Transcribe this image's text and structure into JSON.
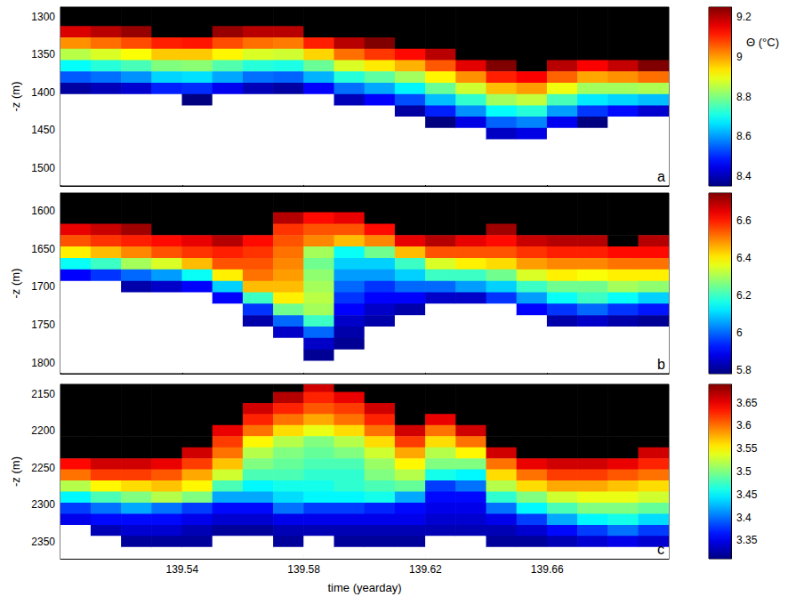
{
  "chart_data": [
    {
      "type": "heatmap",
      "annotations": [
        "a"
      ],
      "y_label": "-z (m)",
      "tick_labels": "y",
      "xlim": [
        139.5,
        139.7
      ],
      "xticks": [
        139.54,
        139.58,
        139.62,
        139.66
      ],
      "ylim": [
        1287,
        1524
      ],
      "yticks": [
        1300,
        1350,
        1400,
        1450,
        1500
      ],
      "colorbar": {
        "label": "Θ (°C)",
        "range": [
          8.35,
          9.25
        ],
        "ticks": [
          8.4,
          8.6,
          8.8,
          9,
          9.2
        ]
      },
      "x": [
        139.505,
        139.515,
        139.525,
        139.535,
        139.545,
        139.555,
        139.565,
        139.575,
        139.585,
        139.595,
        139.605,
        139.615,
        139.625,
        139.635,
        139.645,
        139.655,
        139.665,
        139.675,
        139.685,
        139.695
      ],
      "y": [
        1290,
        1305,
        1320,
        1335,
        1350,
        1365,
        1380,
        1395,
        1410,
        1425,
        1440,
        1455,
        1470,
        1485,
        1500,
        1515
      ],
      "z": [
        [
          9.4,
          9.4,
          9.17,
          9.01,
          8.85,
          8.69,
          8.54,
          8.38,
          8.2,
          8.2,
          8.2,
          8.2,
          8.2,
          8.2,
          8.2,
          8.2
        ],
        [
          9.4,
          9.4,
          9.2,
          9.04,
          8.88,
          8.72,
          8.56,
          8.4,
          8.2,
          8.2,
          8.2,
          8.2,
          8.2,
          8.2,
          8.2,
          8.2
        ],
        [
          9.4,
          9.4,
          9.23,
          9.07,
          8.91,
          8.75,
          8.59,
          8.42,
          8.2,
          8.2,
          8.2,
          8.2,
          8.2,
          8.2,
          8.2,
          8.2
        ],
        [
          9.4,
          9.4,
          9.4,
          9.11,
          8.96,
          8.8,
          8.65,
          8.49,
          8.2,
          8.2,
          8.2,
          8.2,
          8.2,
          8.2,
          8.2,
          8.2
        ],
        [
          9.4,
          9.4,
          9.4,
          9.12,
          8.96,
          8.81,
          8.66,
          8.5,
          8.35,
          8.2,
          8.2,
          8.2,
          8.2,
          8.2,
          8.2,
          8.2
        ],
        [
          9.4,
          9.4,
          9.23,
          9.07,
          8.92,
          8.76,
          8.61,
          8.45,
          8.2,
          8.2,
          8.2,
          8.2,
          8.2,
          8.2,
          8.2,
          8.2
        ],
        [
          9.4,
          9.4,
          9.2,
          9.04,
          8.88,
          8.72,
          8.56,
          8.4,
          8.2,
          8.2,
          8.2,
          8.2,
          8.2,
          8.2,
          8.2,
          8.2
        ],
        [
          9.4,
          9.4,
          9.2,
          9.03,
          8.87,
          8.71,
          8.55,
          8.38,
          8.2,
          8.2,
          8.2,
          8.2,
          8.2,
          8.2,
          8.2,
          8.2
        ],
        [
          9.4,
          9.4,
          9.4,
          9.11,
          8.95,
          8.78,
          8.62,
          8.46,
          8.2,
          8.2,
          8.2,
          8.2,
          8.2,
          8.2,
          8.2,
          8.2
        ],
        [
          9.4,
          9.4,
          9.4,
          9.2,
          9.04,
          8.88,
          8.72,
          8.56,
          8.4,
          8.2,
          8.2,
          8.2,
          8.2,
          8.2,
          8.2,
          8.2
        ],
        [
          9.4,
          9.4,
          9.4,
          9.25,
          9.09,
          8.93,
          8.77,
          8.61,
          8.46,
          8.2,
          8.2,
          8.2,
          8.2,
          8.2,
          8.2,
          8.2
        ],
        [
          9.4,
          9.4,
          9.4,
          9.4,
          9.13,
          8.98,
          8.83,
          8.68,
          8.53,
          8.38,
          8.2,
          8.2,
          8.2,
          8.2,
          8.2,
          8.2
        ],
        [
          9.4,
          9.4,
          9.4,
          9.4,
          9.2,
          9.06,
          8.92,
          8.78,
          8.63,
          8.49,
          8.35,
          8.2,
          8.2,
          8.2,
          8.2,
          8.2
        ],
        [
          9.4,
          9.4,
          9.4,
          9.4,
          9.4,
          9.16,
          9.01,
          8.87,
          8.73,
          8.59,
          8.44,
          8.2,
          8.2,
          8.2,
          8.2,
          8.2
        ],
        [
          9.4,
          9.4,
          9.4,
          9.4,
          9.4,
          9.25,
          9.11,
          8.97,
          8.83,
          8.69,
          8.55,
          8.41,
          8.2,
          8.2,
          8.2,
          8.2
        ],
        [
          9.4,
          9.4,
          9.4,
          9.4,
          9.4,
          9.4,
          9.14,
          9.0,
          8.86,
          8.72,
          8.58,
          8.44,
          8.2,
          8.2,
          8.2,
          8.2
        ],
        [
          9.4,
          9.4,
          9.4,
          9.4,
          9.4,
          9.2,
          9.05,
          8.9,
          8.75,
          8.6,
          8.45,
          8.2,
          8.2,
          8.2,
          8.2,
          8.2
        ],
        [
          9.4,
          9.4,
          9.4,
          9.4,
          9.4,
          9.14,
          8.99,
          8.83,
          8.67,
          8.51,
          8.35,
          8.2,
          8.2,
          8.2,
          8.2,
          8.2
        ],
        [
          9.4,
          9.4,
          9.4,
          9.4,
          9.4,
          9.19,
          9.01,
          8.83,
          8.65,
          8.47,
          8.2,
          8.2,
          8.2,
          8.2,
          8.2,
          8.2
        ],
        [
          9.4,
          9.4,
          9.4,
          9.4,
          9.4,
          9.25,
          9.04,
          8.84,
          8.63,
          8.42,
          8.2,
          8.2,
          8.2,
          8.2,
          8.2,
          8.2
        ]
      ]
    },
    {
      "type": "heatmap",
      "annotations": [
        "b"
      ],
      "y_label": "-z (m)",
      "tick_labels": "y",
      "xlim": [
        139.5,
        139.7
      ],
      "xticks": [
        139.54,
        139.58,
        139.62,
        139.66
      ],
      "ylim": [
        1577,
        1814
      ],
      "yticks": [
        1600,
        1650,
        1700,
        1750,
        1800
      ],
      "colorbar": {
        "range": [
          5.78,
          6.75
        ],
        "ticks": [
          5.8,
          6,
          6.2,
          6.4,
          6.6
        ]
      },
      "x": [
        139.505,
        139.515,
        139.525,
        139.535,
        139.545,
        139.555,
        139.565,
        139.575,
        139.585,
        139.595,
        139.605,
        139.615,
        139.625,
        139.635,
        139.645,
        139.655,
        139.665,
        139.675,
        139.685,
        139.695
      ],
      "y": [
        1580,
        1595,
        1610,
        1625,
        1640,
        1655,
        1670,
        1685,
        1700,
        1715,
        1730,
        1745,
        1760,
        1775,
        1790,
        1805
      ],
      "z": [
        [
          6.9,
          6.9,
          6.9,
          6.65,
          6.55,
          6.4,
          6.15,
          5.9,
          5.6,
          5.6,
          5.6,
          5.6,
          5.6,
          5.6,
          5.6,
          5.6
        ],
        [
          6.9,
          6.9,
          6.9,
          6.68,
          6.58,
          6.45,
          6.2,
          5.95,
          5.6,
          5.6,
          5.6,
          5.6,
          5.6,
          5.6,
          5.6,
          5.6
        ],
        [
          6.9,
          6.9,
          6.9,
          6.72,
          6.6,
          6.5,
          6.3,
          6.0,
          5.82,
          5.6,
          5.6,
          5.6,
          5.6,
          5.6,
          5.6,
          5.6
        ],
        [
          6.9,
          6.9,
          6.9,
          6.9,
          6.62,
          6.55,
          6.35,
          6.05,
          5.85,
          5.6,
          5.6,
          5.6,
          5.6,
          5.6,
          5.6,
          5.6
        ],
        [
          6.9,
          6.9,
          6.9,
          6.9,
          6.65,
          6.58,
          6.45,
          6.15,
          5.9,
          5.6,
          5.6,
          5.6,
          5.6,
          5.6,
          5.6,
          5.6
        ],
        [
          6.9,
          6.9,
          6.9,
          6.9,
          6.7,
          6.6,
          6.55,
          6.4,
          6.1,
          5.9,
          5.6,
          5.6,
          5.6,
          5.6,
          5.6,
          5.6
        ],
        [
          6.9,
          6.9,
          6.9,
          6.9,
          6.62,
          6.58,
          6.55,
          6.52,
          6.45,
          6.2,
          5.95,
          5.82,
          5.6,
          5.6,
          5.6,
          5.6
        ],
        [
          6.9,
          6.9,
          6.7,
          6.58,
          6.55,
          6.52,
          6.5,
          6.48,
          6.45,
          6.4,
          6.25,
          6.0,
          5.85,
          5.6,
          5.6,
          5.6
        ],
        [
          6.9,
          6.9,
          6.62,
          6.55,
          6.5,
          6.3,
          6.25,
          6.28,
          6.3,
          6.32,
          6.3,
          6.2,
          6.0,
          5.85,
          5.8,
          5.6
        ],
        [
          6.9,
          6.9,
          6.65,
          6.55,
          6.45,
          6.15,
          6.1,
          6.05,
          6.0,
          5.95,
          5.9,
          5.85,
          5.82,
          5.8,
          5.6,
          5.6
        ],
        [
          6.9,
          6.9,
          6.9,
          6.62,
          6.5,
          6.25,
          6.1,
          6.05,
          5.95,
          5.9,
          5.85,
          5.82,
          5.6,
          5.6,
          5.6,
          5.6
        ],
        [
          6.9,
          6.9,
          6.9,
          6.9,
          6.65,
          6.45,
          6.2,
          6.1,
          6.0,
          5.9,
          5.82,
          5.6,
          5.6,
          5.6,
          5.6,
          5.6
        ],
        [
          6.9,
          6.9,
          6.9,
          6.9,
          6.7,
          6.55,
          6.35,
          6.2,
          6.0,
          5.85,
          5.6,
          5.6,
          5.6,
          5.6,
          5.6,
          5.6
        ],
        [
          6.9,
          6.9,
          6.9,
          6.9,
          6.65,
          6.55,
          6.4,
          6.2,
          6.05,
          5.85,
          5.6,
          5.6,
          5.6,
          5.6,
          5.6,
          5.6
        ],
        [
          6.9,
          6.9,
          6.9,
          6.72,
          6.62,
          6.55,
          6.42,
          6.25,
          6.1,
          5.95,
          5.6,
          5.6,
          5.6,
          5.6,
          5.6,
          5.6
        ],
        [
          6.9,
          6.9,
          6.9,
          6.9,
          6.68,
          6.58,
          6.48,
          6.35,
          6.2,
          6.05,
          5.9,
          5.6,
          5.6,
          5.6,
          5.6,
          5.6
        ],
        [
          6.9,
          6.9,
          6.9,
          6.9,
          6.7,
          6.6,
          6.5,
          6.4,
          6.25,
          6.15,
          5.95,
          5.82,
          5.6,
          5.6,
          5.6,
          5.6
        ],
        [
          6.9,
          6.9,
          6.9,
          6.9,
          6.7,
          6.6,
          6.5,
          6.38,
          6.25,
          6.2,
          6.0,
          5.85,
          5.6,
          5.6,
          5.6,
          5.6
        ],
        [
          6.9,
          6.9,
          6.9,
          6.9,
          6.9,
          6.62,
          6.52,
          6.4,
          6.3,
          6.15,
          5.95,
          5.82,
          5.6,
          5.6,
          5.6,
          5.6
        ],
        [
          6.9,
          6.9,
          6.9,
          6.9,
          6.7,
          6.62,
          6.52,
          6.4,
          6.28,
          6.1,
          5.92,
          5.8,
          5.6,
          5.6,
          5.6,
          5.6
        ]
      ]
    },
    {
      "type": "heatmap",
      "annotations": [
        "c"
      ],
      "y_label": "-z (m)",
      "x_label": "time (yearday)",
      "xlim": [
        139.5,
        139.7
      ],
      "xticks": [
        139.54,
        139.58,
        139.62,
        139.66
      ],
      "ylim": [
        2137,
        2373
      ],
      "yticks": [
        2150,
        2200,
        2250,
        2300,
        2350
      ],
      "colorbar": {
        "range": [
          3.31,
          3.69
        ],
        "ticks": [
          3.35,
          3.4,
          3.45,
          3.5,
          3.55,
          3.6,
          3.65
        ]
      },
      "x": [
        139.505,
        139.515,
        139.525,
        139.535,
        139.545,
        139.555,
        139.565,
        139.575,
        139.585,
        139.595,
        139.605,
        139.615,
        139.625,
        139.635,
        139.645,
        139.655,
        139.665,
        139.675,
        139.685,
        139.695
      ],
      "y": [
        2140,
        2155,
        2170,
        2185,
        2200,
        2215,
        2230,
        2245,
        2260,
        2275,
        2290,
        2305,
        2320,
        2335,
        2350,
        2365
      ],
      "z": [
        [
          3.8,
          3.8,
          3.8,
          3.8,
          3.8,
          3.8,
          3.8,
          3.64,
          3.6,
          3.52,
          3.45,
          3.38,
          3.35,
          3.2,
          3.2,
          3.2
        ],
        [
          3.8,
          3.8,
          3.8,
          3.8,
          3.8,
          3.8,
          3.8,
          3.66,
          3.62,
          3.55,
          3.48,
          3.4,
          3.36,
          3.33,
          3.2,
          3.2
        ],
        [
          3.8,
          3.8,
          3.8,
          3.8,
          3.8,
          3.8,
          3.8,
          3.66,
          3.62,
          3.56,
          3.5,
          3.42,
          3.36,
          3.34,
          3.32,
          3.2
        ],
        [
          3.8,
          3.8,
          3.8,
          3.8,
          3.8,
          3.8,
          3.8,
          3.65,
          3.61,
          3.57,
          3.52,
          3.4,
          3.36,
          3.34,
          3.32,
          3.2
        ],
        [
          3.8,
          3.8,
          3.8,
          3.8,
          3.8,
          3.8,
          3.66,
          3.62,
          3.58,
          3.55,
          3.5,
          3.38,
          3.35,
          3.33,
          3.32,
          3.2
        ],
        [
          3.8,
          3.8,
          3.8,
          3.8,
          3.65,
          3.62,
          3.6,
          3.57,
          3.53,
          3.48,
          3.42,
          3.36,
          3.34,
          3.32,
          3.2,
          3.2
        ],
        [
          3.8,
          3.8,
          3.66,
          3.63,
          3.6,
          3.55,
          3.52,
          3.5,
          3.48,
          3.45,
          3.42,
          3.36,
          3.34,
          3.32,
          3.2,
          3.2
        ],
        [
          3.8,
          3.67,
          3.63,
          3.6,
          3.56,
          3.52,
          3.5,
          3.49,
          3.48,
          3.46,
          3.44,
          3.4,
          3.35,
          3.33,
          3.32,
          3.2
        ],
        [
          3.66,
          3.63,
          3.61,
          3.58,
          3.54,
          3.5,
          3.49,
          3.48,
          3.47,
          3.46,
          3.45,
          3.38,
          3.35,
          3.33,
          3.2,
          3.2
        ],
        [
          3.8,
          3.65,
          3.62,
          3.6,
          3.56,
          3.52,
          3.5,
          3.48,
          3.47,
          3.47,
          3.45,
          3.38,
          3.35,
          3.33,
          3.32,
          3.2
        ],
        [
          3.8,
          3.8,
          3.66,
          3.63,
          3.6,
          3.56,
          3.53,
          3.51,
          3.5,
          3.48,
          3.46,
          3.37,
          3.35,
          3.33,
          3.32,
          3.2
        ],
        [
          3.8,
          3.8,
          3.8,
          3.8,
          3.66,
          3.62,
          3.58,
          3.55,
          3.52,
          3.49,
          3.42,
          3.36,
          3.35,
          3.33,
          3.32,
          3.2
        ],
        [
          3.8,
          3.8,
          3.8,
          3.65,
          3.6,
          3.56,
          3.52,
          3.5,
          3.46,
          3.38,
          3.36,
          3.35,
          3.34,
          3.33,
          3.2,
          3.2
        ],
        [
          3.8,
          3.8,
          3.8,
          3.8,
          3.66,
          3.6,
          3.55,
          3.5,
          3.45,
          3.4,
          3.36,
          3.35,
          3.34,
          3.33,
          3.2,
          3.2
        ],
        [
          3.8,
          3.8,
          3.8,
          3.8,
          3.8,
          3.8,
          3.66,
          3.6,
          3.56,
          3.52,
          3.47,
          3.4,
          3.35,
          3.33,
          3.32,
          3.2
        ],
        [
          3.8,
          3.8,
          3.8,
          3.8,
          3.8,
          3.8,
          3.8,
          3.65,
          3.6,
          3.56,
          3.5,
          3.45,
          3.38,
          3.34,
          3.32,
          3.2
        ],
        [
          3.8,
          3.8,
          3.8,
          3.8,
          3.8,
          3.8,
          3.8,
          3.66,
          3.62,
          3.58,
          3.53,
          3.48,
          3.42,
          3.36,
          3.33,
          3.2
        ],
        [
          3.8,
          3.8,
          3.8,
          3.8,
          3.8,
          3.8,
          3.8,
          3.66,
          3.62,
          3.58,
          3.54,
          3.5,
          3.45,
          3.38,
          3.34,
          3.2
        ],
        [
          3.8,
          3.8,
          3.8,
          3.8,
          3.8,
          3.8,
          3.8,
          3.65,
          3.61,
          3.57,
          3.54,
          3.5,
          3.46,
          3.4,
          3.35,
          3.2
        ],
        [
          3.8,
          3.8,
          3.8,
          3.8,
          3.8,
          3.8,
          3.66,
          3.63,
          3.6,
          3.56,
          3.53,
          3.49,
          3.44,
          3.38,
          3.34,
          3.2
        ]
      ]
    }
  ]
}
